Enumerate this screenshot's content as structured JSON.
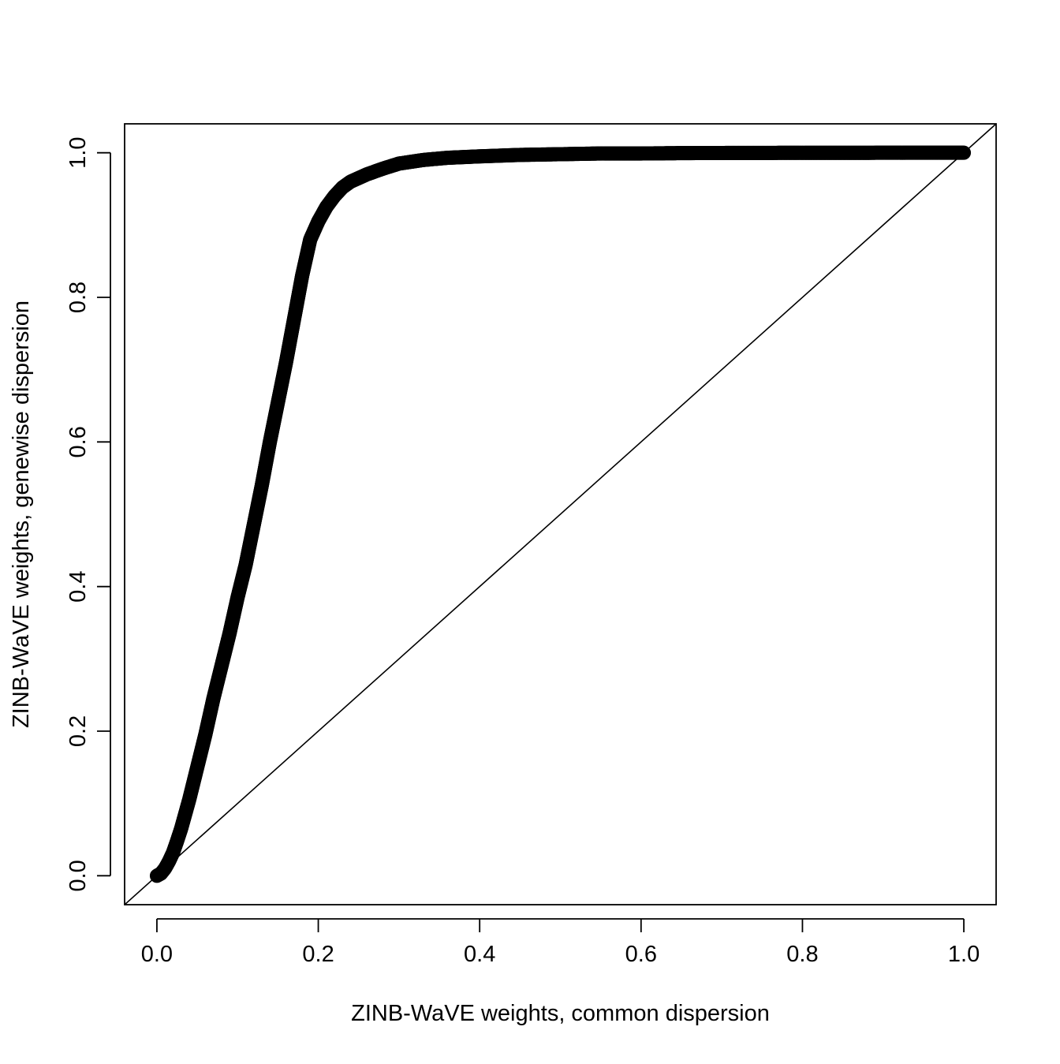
{
  "chart_data": {
    "type": "scatter",
    "title": "",
    "xlabel": "ZINB-WaVE weights, common dispersion",
    "ylabel": "ZINB-WaVE weights, genewise dispersion",
    "xlim": [
      0.0,
      1.0
    ],
    "ylim": [
      0.0,
      1.0
    ],
    "grid": false,
    "legend": "none",
    "x_ticks": [
      "0.0",
      "0.2",
      "0.4",
      "0.6",
      "0.8",
      "1.0"
    ],
    "y_ticks": [
      "0.0",
      "0.2",
      "0.4",
      "0.6",
      "0.8",
      "1.0"
    ],
    "reference_line": {
      "slope": 1,
      "intercept": 0
    },
    "marker": {
      "shape": "open-circle",
      "color": "#000000"
    },
    "series": [
      {
        "x": [
          0.0,
          0.005,
          0.01,
          0.015,
          0.02,
          0.025,
          0.03,
          0.035,
          0.04,
          0.05,
          0.06,
          0.07,
          0.08,
          0.09,
          0.1,
          0.11,
          0.12,
          0.13,
          0.14,
          0.15,
          0.16,
          0.17,
          0.18,
          0.19,
          0.2,
          0.21,
          0.22,
          0.23,
          0.24,
          0.25,
          0.26,
          0.28,
          0.3,
          0.33,
          0.36,
          0.4,
          0.45,
          0.5,
          0.55,
          0.6,
          0.65,
          0.7,
          0.75,
          0.8,
          0.85,
          0.9,
          0.95,
          1.0
        ],
        "y": [
          0.0,
          0.003,
          0.01,
          0.02,
          0.032,
          0.048,
          0.065,
          0.085,
          0.105,
          0.15,
          0.195,
          0.245,
          0.29,
          0.335,
          0.385,
          0.43,
          0.485,
          0.54,
          0.6,
          0.655,
          0.71,
          0.77,
          0.83,
          0.88,
          0.905,
          0.925,
          0.94,
          0.952,
          0.96,
          0.965,
          0.97,
          0.978,
          0.985,
          0.99,
          0.993,
          0.995,
          0.997,
          0.998,
          0.999,
          0.999,
          0.9995,
          0.9997,
          0.9998,
          0.9999,
          0.9999,
          1.0,
          1.0,
          1.0
        ]
      }
    ]
  }
}
